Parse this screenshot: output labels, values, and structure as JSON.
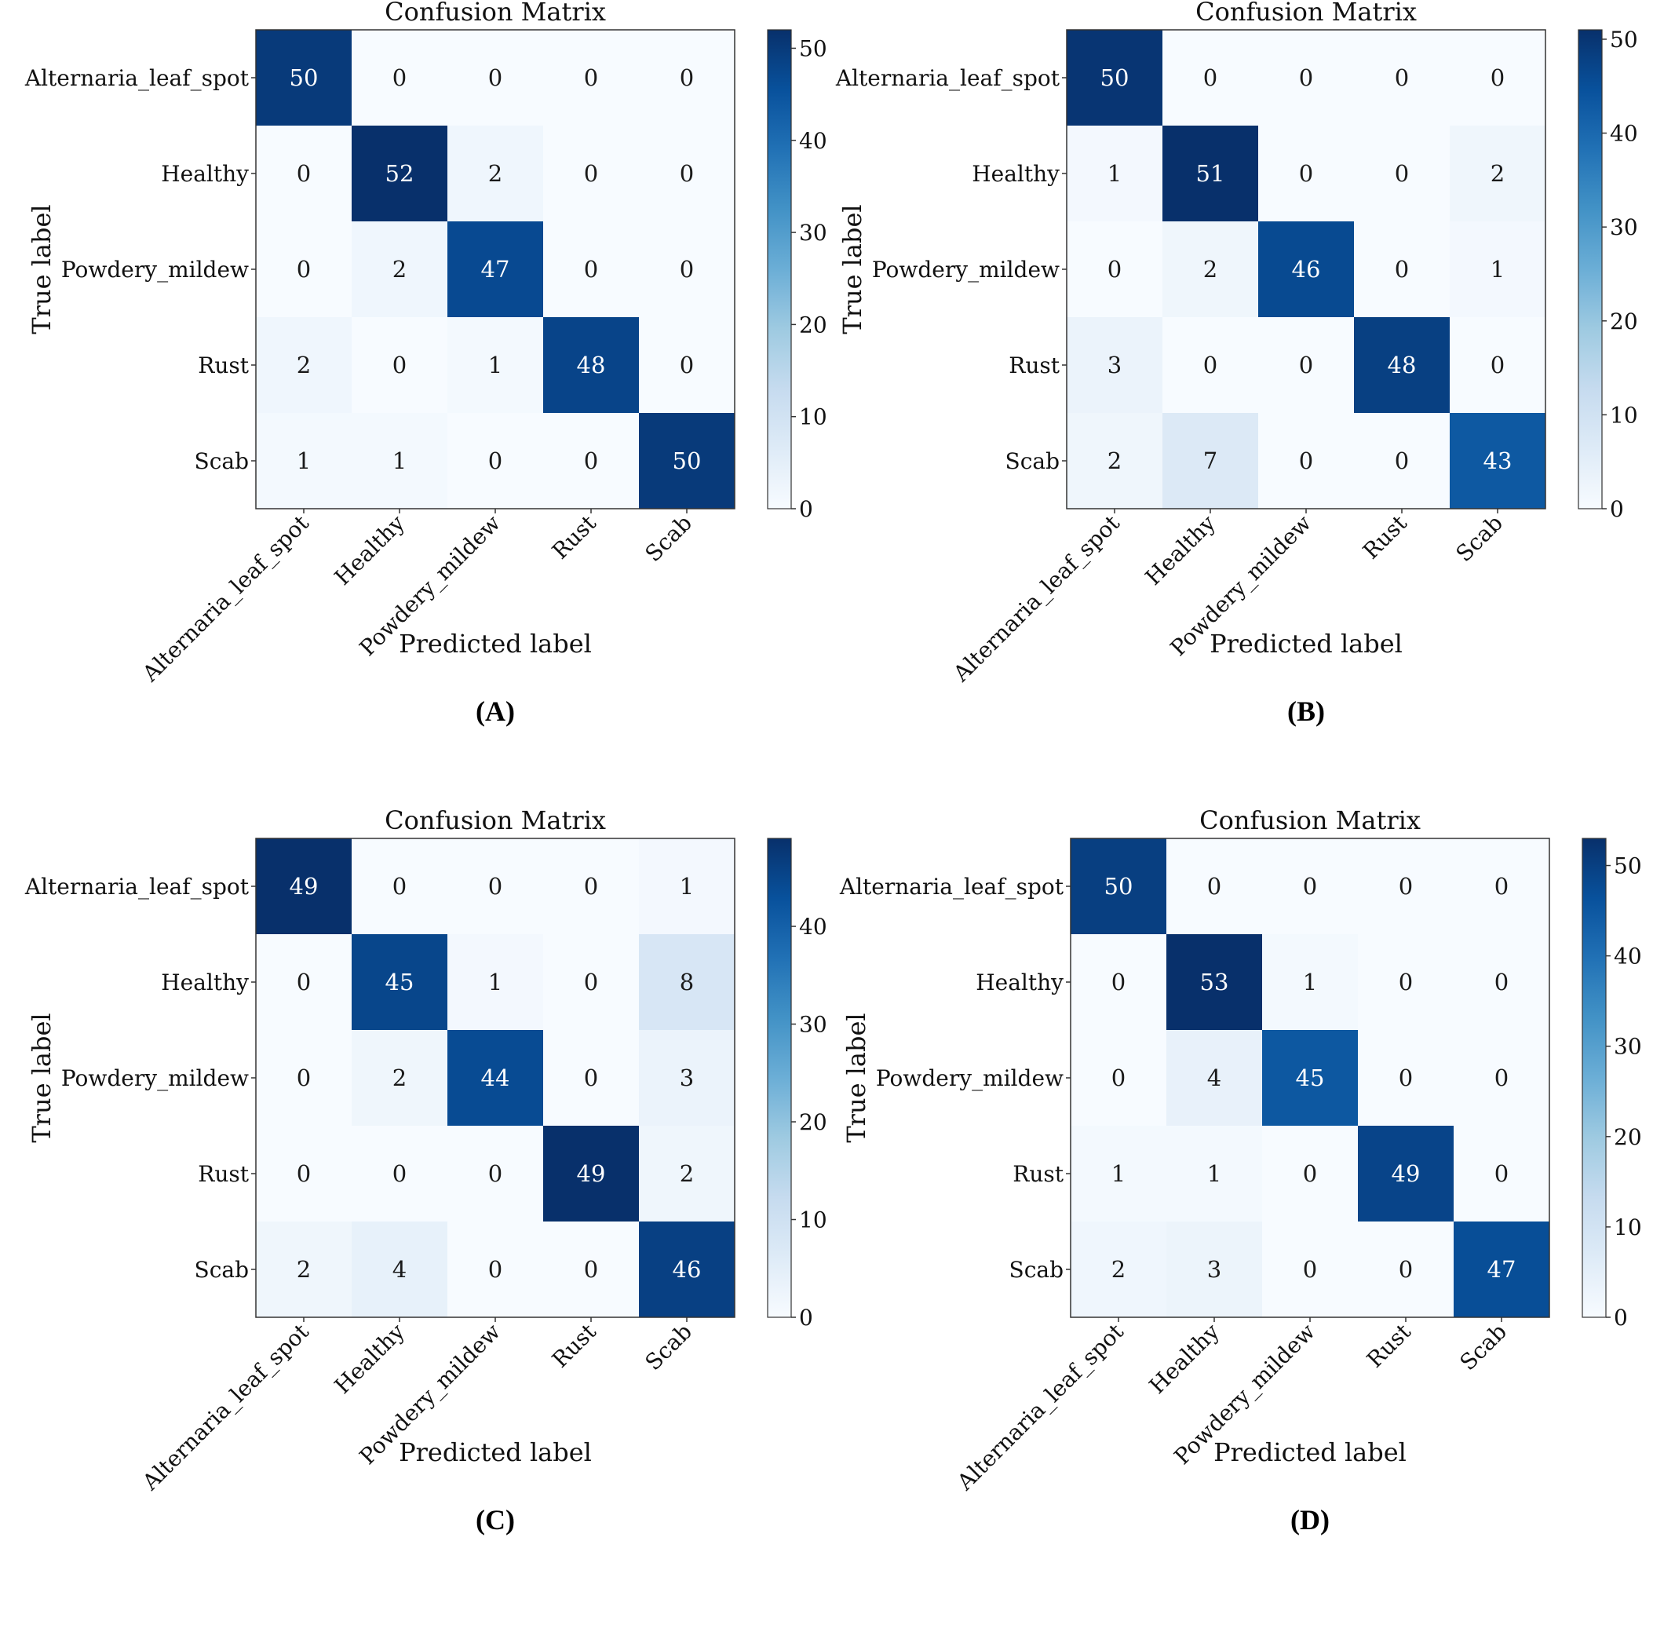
{
  "chart_data": [
    {
      "type": "heatmap",
      "panel_label": "(A)",
      "title": "Confusion Matrix",
      "xlabel": "Predicted label",
      "ylabel": "True label",
      "row_labels": [
        "Alternaria_leaf_spot",
        "Healthy",
        "Powdery_mildew",
        "Rust",
        "Scab"
      ],
      "col_labels": [
        "Alternaria_leaf_spot",
        "Healthy",
        "Powdery_mildew",
        "Rust",
        "Scab"
      ],
      "values": [
        [
          50,
          0,
          0,
          0,
          0
        ],
        [
          0,
          52,
          2,
          0,
          0
        ],
        [
          0,
          2,
          47,
          0,
          0
        ],
        [
          2,
          0,
          1,
          48,
          0
        ],
        [
          1,
          1,
          0,
          0,
          50
        ]
      ],
      "vmin": 0,
      "vmax": 52,
      "colorbar_ticks": [
        "0",
        "10",
        "20",
        "30",
        "40",
        "50"
      ],
      "colormap": "Blues"
    },
    {
      "type": "heatmap",
      "panel_label": "(B)",
      "title": "Confusion Matrix",
      "xlabel": "Predicted label",
      "ylabel": "True label",
      "row_labels": [
        "Alternaria_leaf_spot",
        "Healthy",
        "Powdery_mildew",
        "Rust",
        "Scab"
      ],
      "col_labels": [
        "Alternaria_leaf_spot",
        "Healthy",
        "Powdery_mildew",
        "Rust",
        "Scab"
      ],
      "values": [
        [
          50,
          0,
          0,
          0,
          0
        ],
        [
          1,
          51,
          0,
          0,
          2
        ],
        [
          0,
          2,
          46,
          0,
          1
        ],
        [
          3,
          0,
          0,
          48,
          0
        ],
        [
          2,
          7,
          0,
          0,
          43
        ]
      ],
      "vmin": 0,
      "vmax": 51,
      "colorbar_ticks": [
        "0",
        "10",
        "20",
        "30",
        "40",
        "50"
      ],
      "colormap": "Blues"
    },
    {
      "type": "heatmap",
      "panel_label": "(C)",
      "title": "Confusion Matrix",
      "xlabel": "Predicted label",
      "ylabel": "True label",
      "row_labels": [
        "Alternaria_leaf_spot",
        "Healthy",
        "Powdery_mildew",
        "Rust",
        "Scab"
      ],
      "col_labels": [
        "Alternaria_leaf_spot",
        "Healthy",
        "Powdery_mildew",
        "Rust",
        "Scab"
      ],
      "values": [
        [
          49,
          0,
          0,
          0,
          1
        ],
        [
          0,
          45,
          1,
          0,
          8
        ],
        [
          0,
          2,
          44,
          0,
          3
        ],
        [
          0,
          0,
          0,
          49,
          2
        ],
        [
          2,
          4,
          0,
          0,
          46
        ]
      ],
      "vmin": 0,
      "vmax": 49,
      "colorbar_ticks": [
        "0",
        "10",
        "20",
        "30",
        "40"
      ],
      "colormap": "Blues"
    },
    {
      "type": "heatmap",
      "panel_label": "(D)",
      "title": "Confusion Matrix",
      "xlabel": "Predicted label",
      "ylabel": "True label",
      "row_labels": [
        "Alternaria_leaf_spot",
        "Healthy",
        "Powdery_mildew",
        "Rust",
        "Scab"
      ],
      "col_labels": [
        "Alternaria_leaf_spot",
        "Healthy",
        "Powdery_mildew",
        "Rust",
        "Scab"
      ],
      "values": [
        [
          50,
          0,
          0,
          0,
          0
        ],
        [
          0,
          53,
          1,
          0,
          0
        ],
        [
          0,
          4,
          45,
          0,
          0
        ],
        [
          1,
          1,
          0,
          49,
          0
        ],
        [
          2,
          3,
          0,
          0,
          47
        ]
      ],
      "vmin": 0,
      "vmax": 53,
      "colorbar_ticks": [
        "0",
        "10",
        "20",
        "30",
        "40",
        "50"
      ],
      "colormap": "Blues"
    }
  ]
}
